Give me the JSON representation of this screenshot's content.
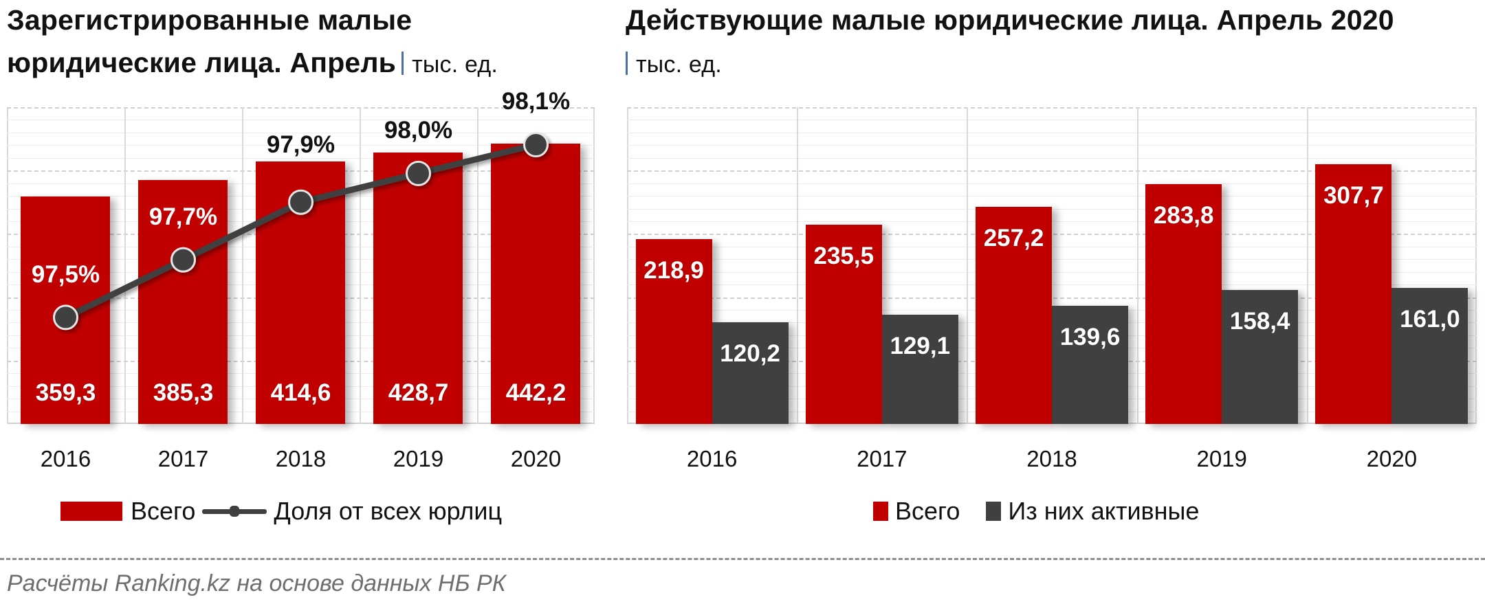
{
  "colors": {
    "total": "#c00000",
    "active": "#404040",
    "share_line": "#404040"
  },
  "left_chart": {
    "title_line1": "Зарегистрированные малые",
    "title_line2": "юридические лица. Апрель",
    "unit": "тыс. ед.",
    "legend": {
      "bar_label": "Всего",
      "line_label": "Доля от всех юрлиц"
    }
  },
  "right_chart": {
    "title_line1": "Действующие малые юридические лица.  Апрель 2020",
    "unit": "тыс. ед.",
    "legend": {
      "total_label": "Всего",
      "active_label": "Из них активные"
    }
  },
  "source": "Расчёты Ranking.kz на основе данных  НБ РК",
  "chart_data": [
    {
      "type": "bar",
      "title": "Зарегистрированные малые юридические лица. Апрель | тыс. ед.",
      "categories": [
        "2016",
        "2017",
        "2018",
        "2019",
        "2020"
      ],
      "series": [
        {
          "name": "Всего",
          "type": "bar",
          "values": [
            359.3,
            385.3,
            414.6,
            428.7,
            442.2
          ],
          "labels": [
            "359,3",
            "385,3",
            "414,6",
            "428,7",
            "442,2"
          ]
        },
        {
          "name": "Доля от всех юрлиц",
          "type": "line",
          "axis": "secondary",
          "values": [
            97.5,
            97.7,
            97.9,
            98.0,
            98.1
          ],
          "labels": [
            "97,5%",
            "97,7%",
            "97,9%",
            "98,0%",
            "98,1%"
          ]
        }
      ],
      "xlabel": "",
      "ylabel": "тыс. ед.",
      "ylim": [
        0,
        500
      ],
      "y2lim": [
        97.13,
        98.23
      ],
      "grid": true,
      "legend_position": "bottom"
    },
    {
      "type": "bar",
      "title": "Действующие малые юридические лица. Апрель 2020 | тыс. ед.",
      "categories": [
        "2016",
        "2017",
        "2018",
        "2019",
        "2020"
      ],
      "series": [
        {
          "name": "Всего",
          "values": [
            218.9,
            235.5,
            257.2,
            283.8,
            307.7
          ],
          "labels": [
            "218,9",
            "235,5",
            "257,2",
            "283,8",
            "307,7"
          ]
        },
        {
          "name": "Из них активные",
          "values": [
            120.2,
            129.1,
            139.6,
            158.4,
            161.0
          ],
          "labels": [
            "120,2",
            "129,1",
            "139,6",
            "158,4",
            "161,0"
          ]
        }
      ],
      "xlabel": "",
      "ylabel": "тыс. ед.",
      "ylim": [
        0,
        375
      ],
      "grid": true,
      "legend_position": "bottom"
    }
  ]
}
